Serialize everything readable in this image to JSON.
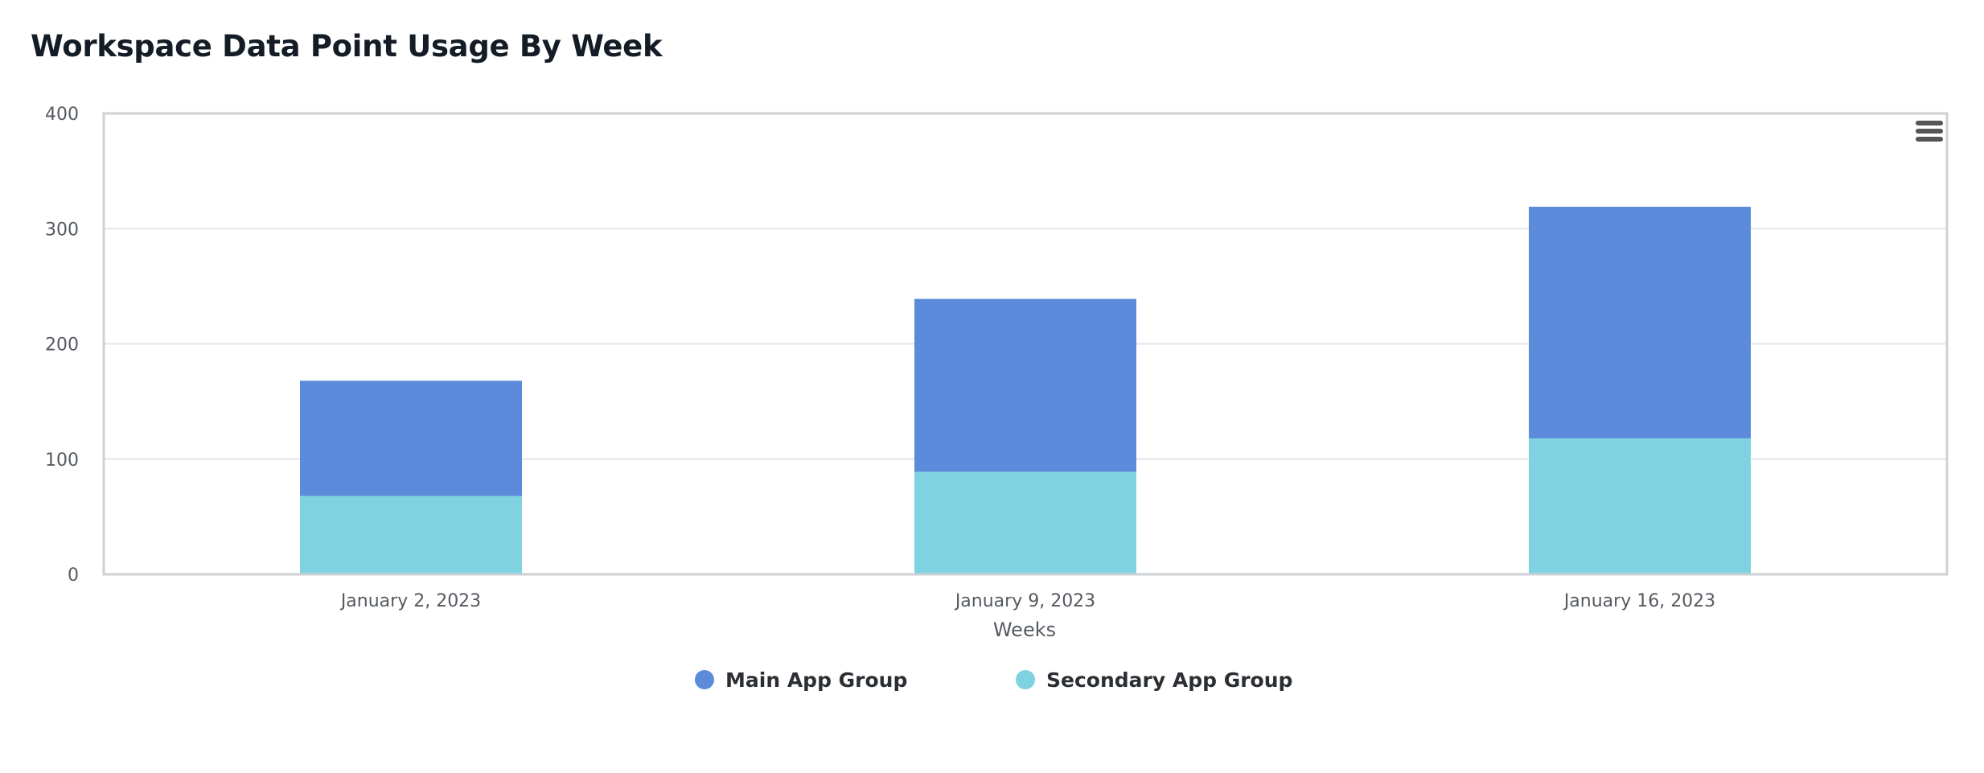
{
  "chart_data": {
    "type": "bar",
    "stacked": true,
    "title": "Workspace Data Point Usage By Week",
    "xlabel": "Weeks",
    "ylabel": "",
    "categories": [
      "January 2, 2023",
      "January 9, 2023",
      "January 16, 2023"
    ],
    "series": [
      {
        "name": "Secondary App Group",
        "color": "#7fd2e0",
        "values": [
          68,
          89,
          118
        ]
      },
      {
        "name": "Main App Group",
        "color": "#5b8bda",
        "values": [
          100,
          150,
          201
        ]
      }
    ],
    "legend_order": [
      "Main App Group",
      "Secondary App Group"
    ],
    "ylim": [
      0,
      400
    ],
    "yticks": [
      0,
      100,
      200,
      300,
      400
    ],
    "grid": true,
    "legend_position": "bottom-center"
  },
  "toolbar": {
    "menu_icon": "hamburger-menu-icon"
  }
}
